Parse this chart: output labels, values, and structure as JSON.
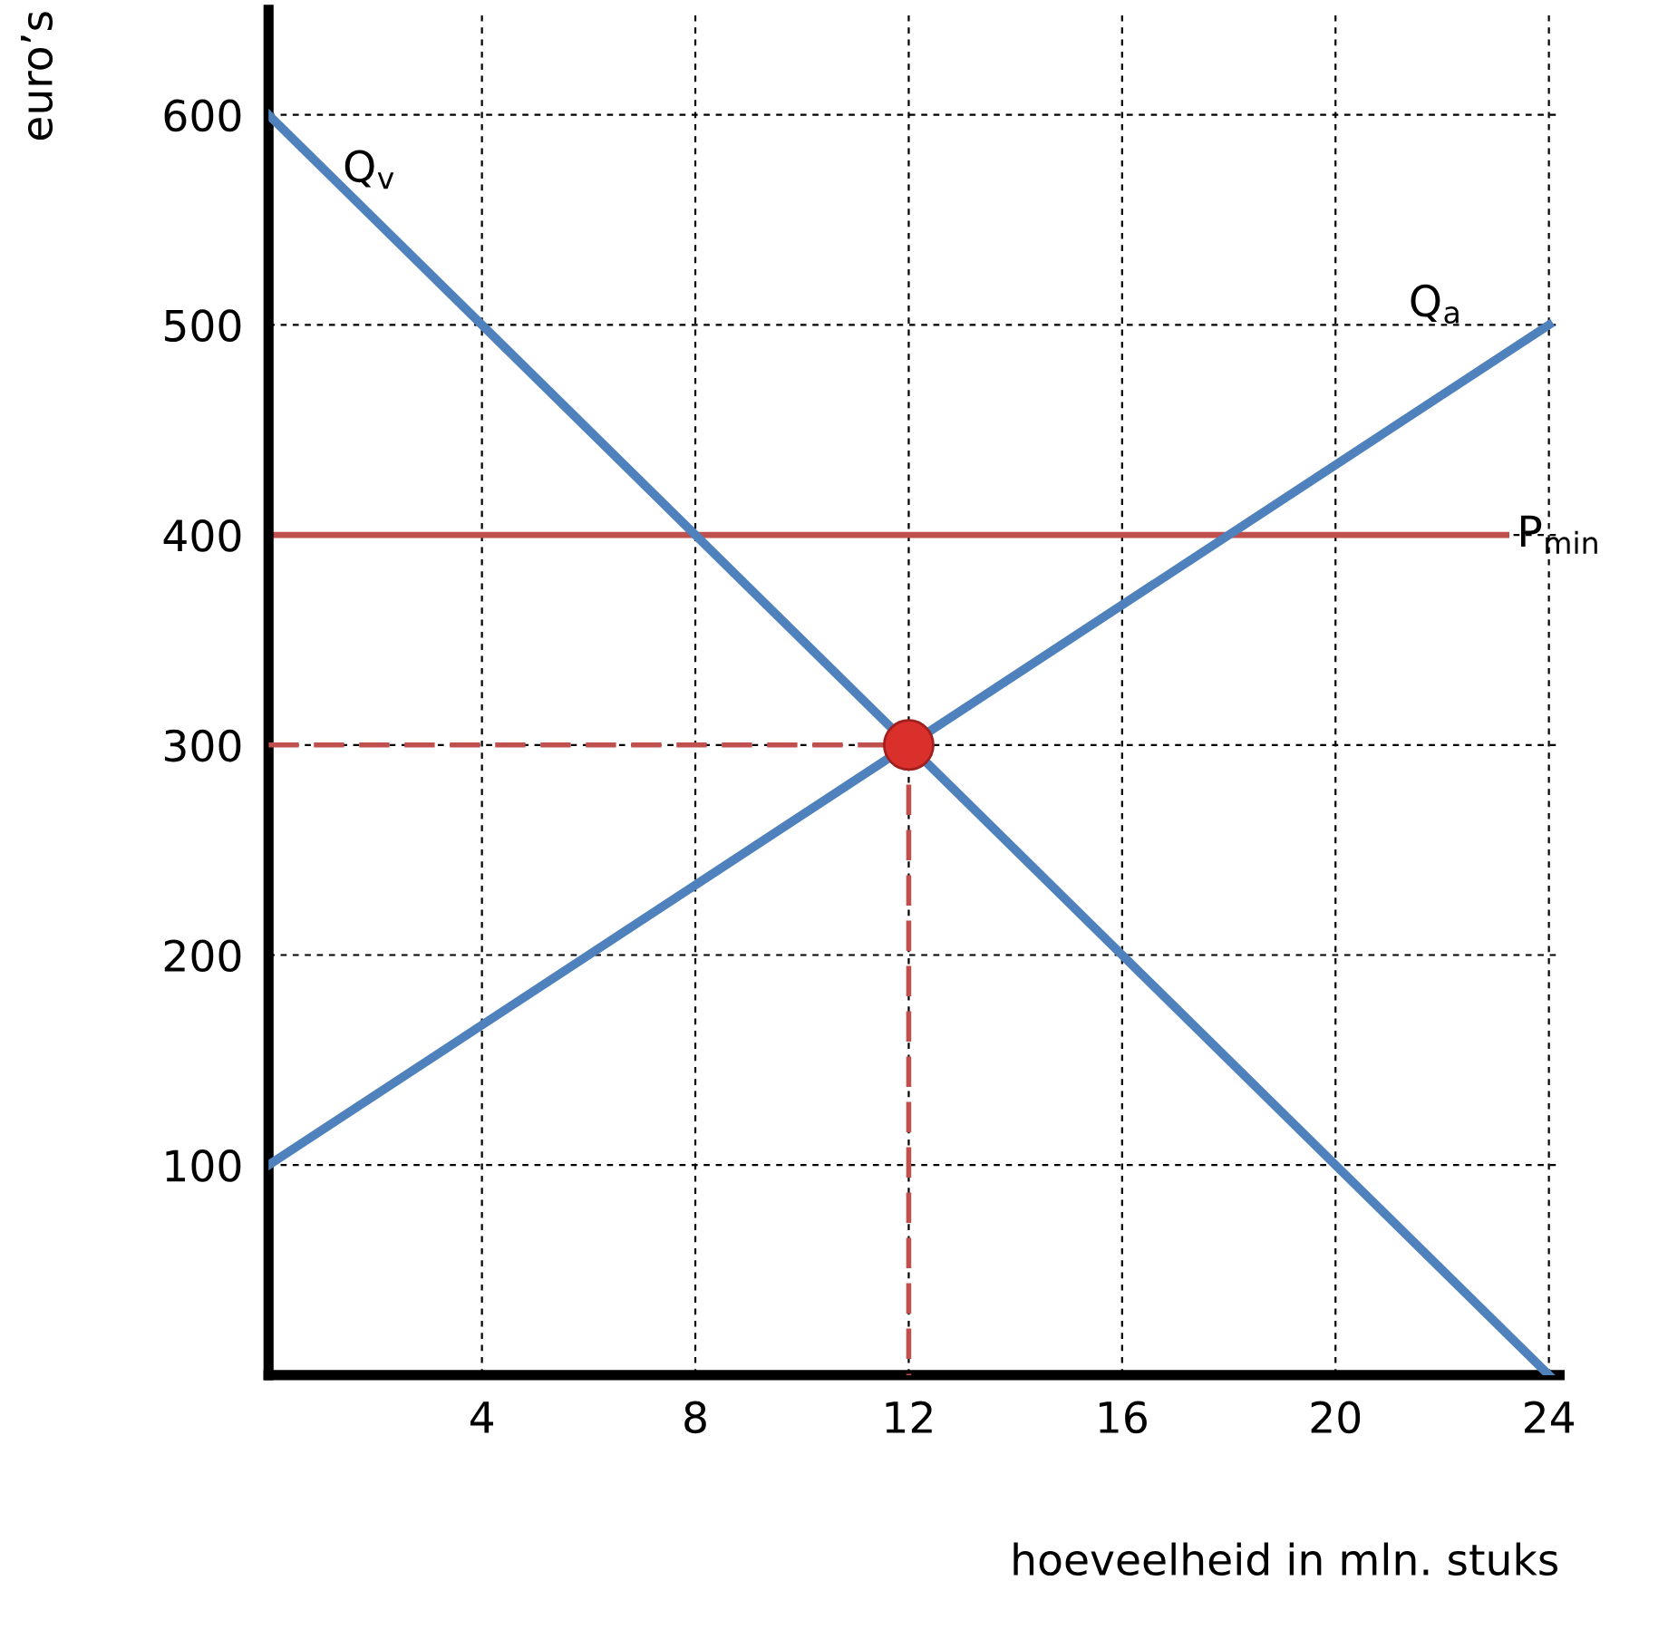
{
  "chart_data": {
    "type": "line",
    "xlabel": "hoeveelheid in mln. stuks",
    "ylabel": "euro’s",
    "xlim": [
      0,
      24.2
    ],
    "ylim": [
      0,
      650
    ],
    "xticks": [
      4,
      8,
      12,
      16,
      20,
      24
    ],
    "yticks": [
      100,
      200,
      300,
      400,
      500,
      600
    ],
    "grid": true,
    "series": [
      {
        "name": "Q$_{v}$",
        "x": [
          0,
          24
        ],
        "values": [
          600,
          0
        ],
        "color": "#4f81bd"
      },
      {
        "name": "Q$_{a}$",
        "x": [
          0,
          24
        ],
        "values": [
          100,
          500
        ],
        "color": "#4f81bd"
      },
      {
        "x": [
          0,
          12,
          12
        ],
        "values": [
          300,
          300,
          0
        ],
        "color": "#c0504d",
        "line_style": "dashed"
      },
      {
        "type": "scatter",
        "x": [
          12
        ],
        "values": [
          300
        ],
        "color": "#d9302c",
        "marker": "circle"
      }
    ],
    "ref_lines": [
      {
        "axis": "y",
        "value": 400,
        "label": "P$_{min}$",
        "color": "#c0504d"
      }
    ]
  }
}
